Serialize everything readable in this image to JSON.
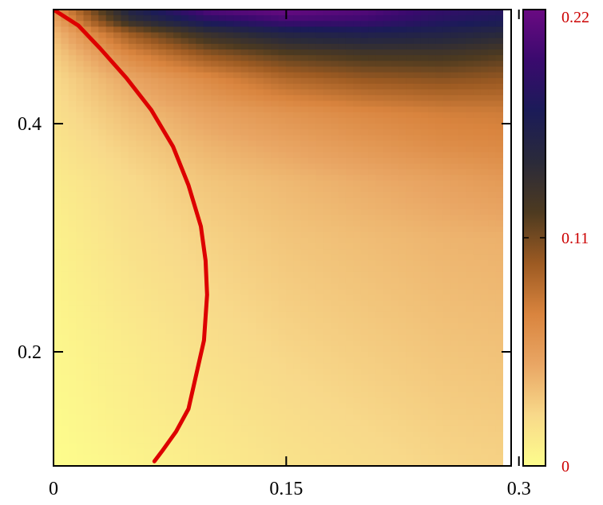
{
  "chart_data": {
    "type": "heatmap",
    "title": "",
    "xlabel": "",
    "ylabel": "",
    "xlim": [
      0,
      0.295
    ],
    "ylim": [
      0.1,
      0.5
    ],
    "x_ticks": [
      {
        "value": 0,
        "label": "0"
      },
      {
        "value": 0.15,
        "label": "0.15"
      },
      {
        "value": 0.3,
        "label": "0.3"
      }
    ],
    "y_ticks": [
      {
        "value": 0.2,
        "label": "0.2"
      },
      {
        "value": 0.4,
        "label": "0.4"
      }
    ],
    "colorbar": {
      "min": 0,
      "max": 0.22,
      "ticks": [
        {
          "value": 0,
          "label": "0"
        },
        {
          "value": 0.11,
          "label": "0.11"
        },
        {
          "value": 0.22,
          "label": "0.22"
        }
      ],
      "label_color": "#cc0000",
      "colormap": [
        "#fdfd8c",
        "#f8d98a",
        "#e9a664",
        "#d9843e",
        "#9c5a22",
        "#4d3a20",
        "#2a2a3a",
        "#1b1b58",
        "#3a0a6e",
        "#6a0a82"
      ]
    },
    "heatmap_rows": {
      "y": [
        0.1,
        0.15,
        0.2,
        0.25,
        0.3,
        0.35,
        0.38,
        0.41,
        0.44,
        0.46,
        0.48,
        0.49,
        0.5
      ],
      "x": [
        0,
        0.05,
        0.1,
        0.15,
        0.2,
        0.25,
        0.295
      ],
      "z": [
        [
          0.0,
          0.006,
          0.012,
          0.018,
          0.022,
          0.026,
          0.028
        ],
        [
          0.002,
          0.01,
          0.016,
          0.022,
          0.026,
          0.03,
          0.032
        ],
        [
          0.004,
          0.012,
          0.02,
          0.026,
          0.03,
          0.034,
          0.036
        ],
        [
          0.006,
          0.016,
          0.024,
          0.03,
          0.034,
          0.038,
          0.04
        ],
        [
          0.008,
          0.02,
          0.028,
          0.034,
          0.038,
          0.042,
          0.044
        ],
        [
          0.012,
          0.024,
          0.034,
          0.04,
          0.046,
          0.052,
          0.058
        ],
        [
          0.016,
          0.03,
          0.042,
          0.05,
          0.058,
          0.066,
          0.07
        ],
        [
          0.02,
          0.038,
          0.052,
          0.062,
          0.07,
          0.076,
          0.078
        ],
        [
          0.024,
          0.05,
          0.07,
          0.09,
          0.1,
          0.104,
          0.1
        ],
        [
          0.03,
          0.07,
          0.1,
          0.118,
          0.126,
          0.128,
          0.12
        ],
        [
          0.04,
          0.1,
          0.14,
          0.16,
          0.166,
          0.16,
          0.15
        ],
        [
          0.05,
          0.14,
          0.18,
          0.2,
          0.196,
          0.18,
          0.17
        ],
        [
          0.06,
          0.16,
          0.21,
          0.22,
          0.21,
          0.19,
          0.18
        ]
      ]
    },
    "overlay_curve": {
      "color": "#dd0000",
      "points": [
        [
          0.0,
          0.5
        ],
        [
          0.016,
          0.486
        ],
        [
          0.03,
          0.466
        ],
        [
          0.047,
          0.44
        ],
        [
          0.063,
          0.412
        ],
        [
          0.077,
          0.38
        ],
        [
          0.087,
          0.346
        ],
        [
          0.095,
          0.31
        ],
        [
          0.098,
          0.28
        ],
        [
          0.099,
          0.25
        ],
        [
          0.097,
          0.21
        ],
        [
          0.092,
          0.18
        ],
        [
          0.087,
          0.15
        ],
        [
          0.079,
          0.13
        ],
        [
          0.07,
          0.113
        ],
        [
          0.065,
          0.104
        ]
      ]
    }
  }
}
